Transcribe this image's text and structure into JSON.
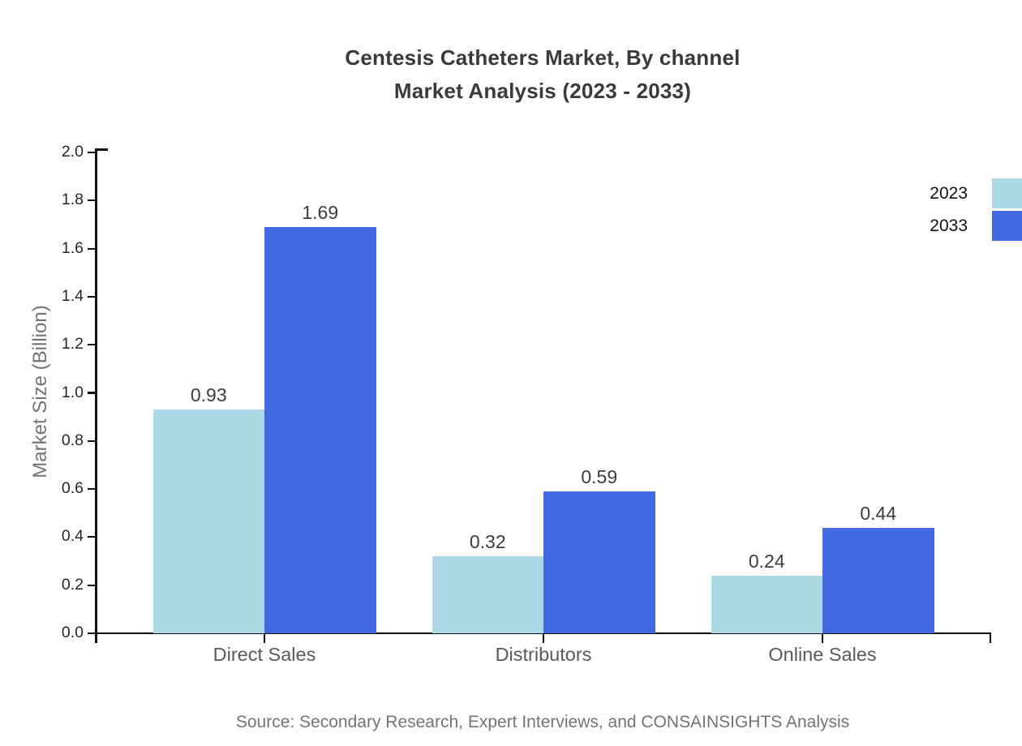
{
  "title": {
    "line1": "Centesis Catheters Market, By channel",
    "line2": "Market Analysis (2023 - 2033)"
  },
  "source": "Source: Secondary Research, Expert Interviews, and CONSAINSIGHTS Analysis",
  "chart_data": {
    "type": "bar",
    "title": "Centesis Catheters Market, By channel Market Analysis (2023 - 2033)",
    "categories": [
      "Direct Sales",
      "Distributors",
      "Online Sales"
    ],
    "series": [
      {
        "name": "2023",
        "color": "#ADD8E6",
        "values": [
          0.93,
          0.32,
          0.24
        ]
      },
      {
        "name": "2033",
        "color": "#4169E1",
        "values": [
          1.69,
          0.59,
          0.44
        ]
      }
    ],
    "xlabel": "",
    "ylabel": "Market Size (Billion)",
    "ylim": [
      0.0,
      2.0
    ],
    "ytick_step": 0.2,
    "ytick_labels": [
      "0.0",
      "0.2",
      "0.4",
      "0.6",
      "0.8",
      "1.0",
      "1.2",
      "1.4",
      "1.6",
      "1.8",
      "2.0"
    ],
    "grid": false,
    "legend_position": "upper right",
    "value_labels": true,
    "axis_color": "#111111",
    "tick_label_color": "#262626",
    "category_label_color": "#595959",
    "value_label_color": "#3d3d3d"
  }
}
